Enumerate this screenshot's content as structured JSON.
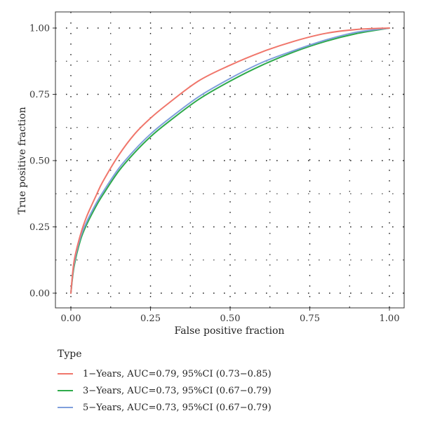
{
  "chart_data": {
    "type": "line",
    "title": "",
    "xlabel": "False positive fraction",
    "ylabel": "True positive fraction",
    "xlim": [
      0,
      1
    ],
    "ylim": [
      0,
      1
    ],
    "xticks": [
      "0.00",
      "0.25",
      "0.50",
      "0.75",
      "1.00"
    ],
    "yticks": [
      "0.00",
      "0.25",
      "0.50",
      "0.75",
      "1.00"
    ],
    "grid": "dotted",
    "legend_title": "Type",
    "legend_position": "bottom",
    "series": [
      {
        "name": "1−Years, AUC=0.79, 95%CI (0.73−0.85)",
        "color": "#f0766b",
        "x": [
          0,
          0.01,
          0.03,
          0.05,
          0.08,
          0.1,
          0.15,
          0.2,
          0.25,
          0.3,
          0.4,
          0.5,
          0.6,
          0.7,
          0.8,
          0.9,
          1.0
        ],
        "y": [
          0,
          0.12,
          0.22,
          0.29,
          0.37,
          0.42,
          0.52,
          0.6,
          0.66,
          0.71,
          0.8,
          0.86,
          0.91,
          0.95,
          0.98,
          0.995,
          1.0
        ]
      },
      {
        "name": "3−Years, AUC=0.73, 95%CI (0.67−0.79)",
        "color": "#2eaa4a",
        "x": [
          0,
          0.01,
          0.03,
          0.05,
          0.08,
          0.1,
          0.15,
          0.2,
          0.25,
          0.3,
          0.4,
          0.5,
          0.6,
          0.7,
          0.8,
          0.9,
          1.0
        ],
        "y": [
          0,
          0.1,
          0.2,
          0.26,
          0.33,
          0.37,
          0.46,
          0.53,
          0.59,
          0.64,
          0.73,
          0.8,
          0.86,
          0.91,
          0.95,
          0.98,
          1.0
        ]
      },
      {
        "name": "5−Years, AUC=0.73, 95%CI (0.67−0.79)",
        "color": "#7f9fdc",
        "x": [
          0,
          0.01,
          0.03,
          0.05,
          0.08,
          0.1,
          0.15,
          0.2,
          0.25,
          0.3,
          0.4,
          0.5,
          0.6,
          0.7,
          0.8,
          0.9,
          1.0
        ],
        "y": [
          0,
          0.11,
          0.21,
          0.27,
          0.34,
          0.38,
          0.47,
          0.54,
          0.6,
          0.65,
          0.74,
          0.81,
          0.87,
          0.915,
          0.955,
          0.985,
          1.0
        ]
      }
    ]
  }
}
